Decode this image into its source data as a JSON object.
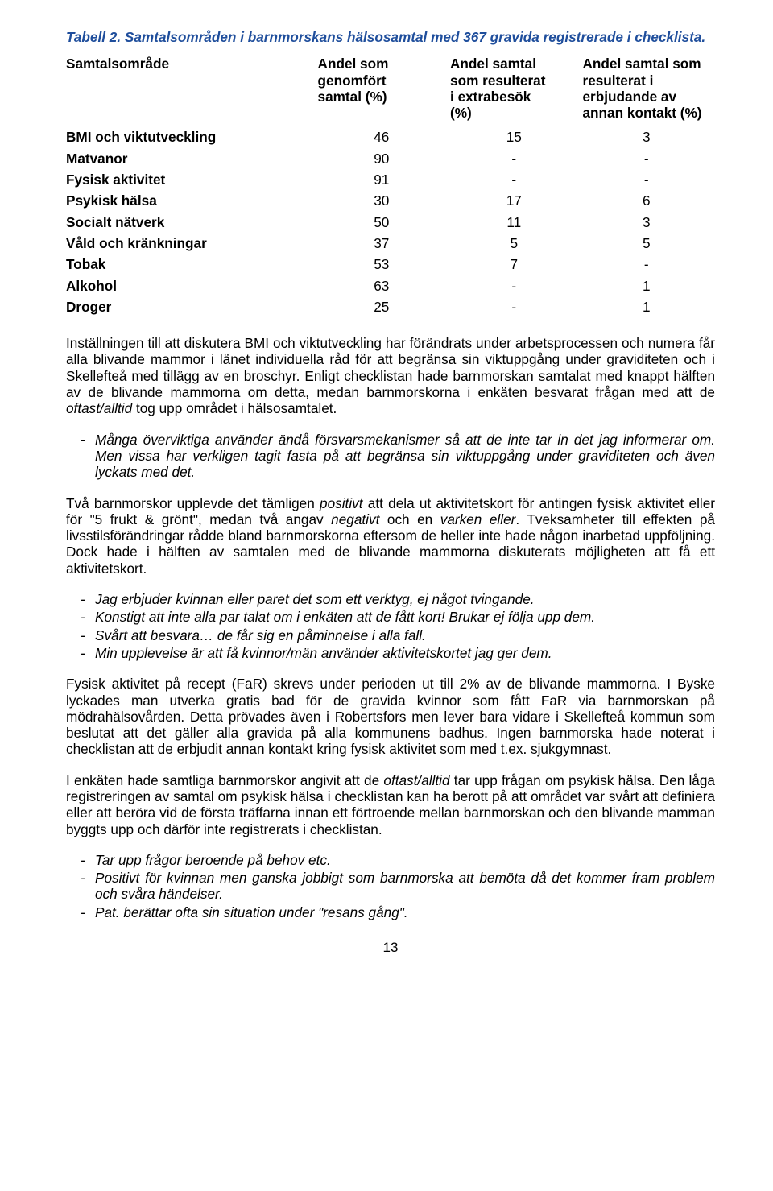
{
  "caption": "Tabell 2. Samtalsområden i barnmorskans hälsosamtal med 367 gravida registrerade i checklista.",
  "table": {
    "columns": [
      "Samtalsområde",
      "Andel som\ngenomfört\nsamtal (%)",
      "Andel samtal\nsom resulterat\ni extrabesök\n(%)",
      "Andel samtal som\nresulterat i\nerbjudande av\nannan kontakt (%)"
    ],
    "rows": [
      {
        "label": "BMI och viktutveckling",
        "c1": "46",
        "c2": "15",
        "c3": "3"
      },
      {
        "label": "Matvanor",
        "c1": "90",
        "c2": "-",
        "c3": "-"
      },
      {
        "label": "Fysisk aktivitet",
        "c1": "91",
        "c2": "-",
        "c3": "-"
      },
      {
        "label": "Psykisk hälsa",
        "c1": "30",
        "c2": "17",
        "c3": "6"
      },
      {
        "label": "Socialt nätverk",
        "c1": "50",
        "c2": "11",
        "c3": "3"
      },
      {
        "label": "Våld och kränkningar",
        "c1": "37",
        "c2": "5",
        "c3": "5"
      },
      {
        "label": "Tobak",
        "c1": "53",
        "c2": "7",
        "c3": "-"
      },
      {
        "label": "Alkohol",
        "c1": "63",
        "c2": "-",
        "c3": "1"
      },
      {
        "label": "Droger",
        "c1": "25",
        "c2": "-",
        "c3": "1"
      }
    ]
  },
  "para1_a": "Inställningen till att diskutera BMI och viktutveckling har förändrats under arbetsprocessen och numera får alla blivande mammor i länet individuella råd för att begränsa sin viktuppgång under graviditeten och i Skellefteå med tillägg av en broschyr. Enligt checklistan hade barnmorskan samtalat med knappt hälften av de blivande mammorna om detta, medan barnmorskorna i enkäten besvarat frågan med att de ",
  "para1_em": "oftast/alltid",
  "para1_b": " tog upp området i hälsosamtalet.",
  "quote1": "Många överviktiga använder ändå försvarsmekanismer så att de inte tar in det jag informerar om. Men vissa har verkligen tagit fasta på att begränsa sin viktuppgång under graviditeten och även lyckats med det.",
  "para2_a": "Två barnmorskor upplevde det tämligen ",
  "para2_em1": "positivt",
  "para2_b": " att dela ut aktivitetskort för antingen fysisk aktivitet eller för \"5 frukt & grönt\", medan två angav ",
  "para2_em2": "negativt",
  "para2_c": " och en ",
  "para2_em3": "varken eller",
  "para2_d": ". Tveksamheter till effekten på livsstilsförändringar rådde bland barnmorskorna eftersom de heller inte hade någon inarbetad uppföljning. Dock hade i hälften av samtalen med de blivande mammorna diskuterats möjligheten att få ett aktivitetskort.",
  "list2": [
    "Jag erbjuder kvinnan eller paret det som ett verktyg, ej något tvingande.",
    "Konstigt att inte alla par talat om i enkäten att de fått kort! Brukar ej följa upp dem.",
    "Svårt att besvara… de får sig en påminnelse i alla fall.",
    "Min upplevelse är att få kvinnor/män använder aktivitetskortet jag ger dem."
  ],
  "para3": "Fysisk aktivitet på recept (FaR) skrevs under perioden ut till 2% av de blivande mammorna. I Byske lyckades man utverka gratis bad för de gravida kvinnor som fått FaR via barnmorskan på mödrahälsovården. Detta prövades även i Robertsfors men lever bara vidare i Skellefteå kommun som beslutat att det gäller alla gravida på alla kommunens badhus. Ingen barnmorska hade noterat i checklistan att de erbjudit annan kontakt kring fysisk aktivitet som med t.ex. sjukgymnast.",
  "para4_a": "I enkäten hade samtliga barnmorskor angivit att de ",
  "para4_em": "oftast/alltid",
  "para4_b": " tar upp frågan om psykisk hälsa. Den låga registreringen av samtal om psykisk hälsa i checklistan kan ha berott på att området var svårt att definiera eller att beröra vid de första träffarna innan ett förtroende mellan barnmorskan och den blivande mamman byggts upp och därför inte registrerats i checklistan.",
  "list3": [
    "Tar upp frågor beroende på behov etc.",
    "Positivt för kvinnan men ganska jobbigt som barnmorska att bemöta då det kommer fram problem och svåra händelser.",
    "Pat. berättar ofta sin situation under \"resans gång\"."
  ],
  "pagenum": "13"
}
